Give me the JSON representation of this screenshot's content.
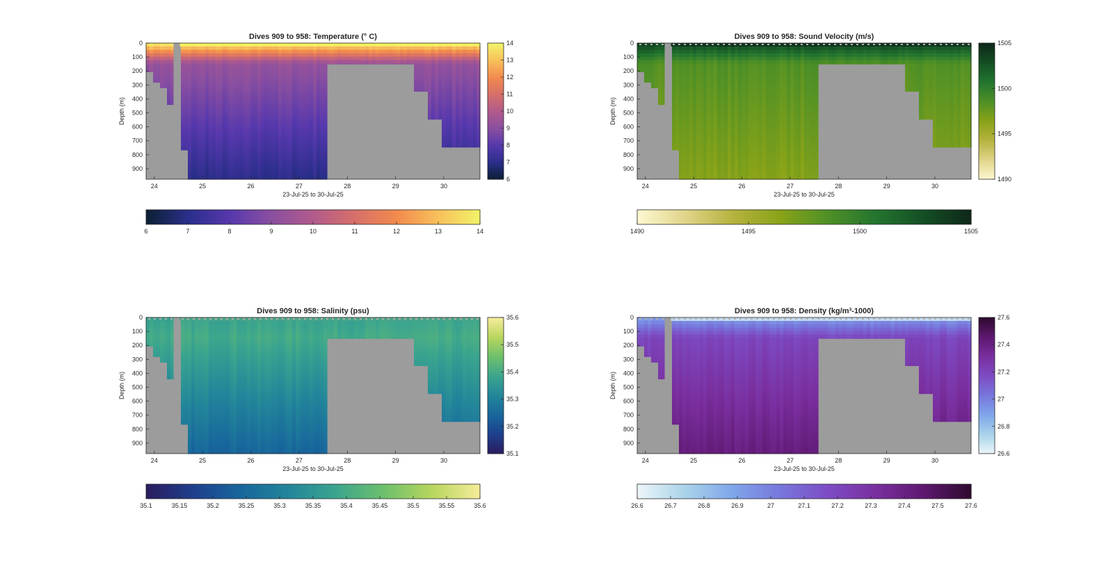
{
  "chart_data": [
    {
      "type": "heatmap",
      "title": "Dives 909 to 958: Temperature (° C)",
      "ylabel": "Depth (m)",
      "xlabel": "23-Jul-25 to 30-Jul-25",
      "xticks": [
        "24",
        "25",
        "26",
        "27",
        "28",
        "29",
        "30"
      ],
      "yticks": [
        "0",
        "100",
        "200",
        "300",
        "400",
        "500",
        "600",
        "700",
        "800",
        "900"
      ],
      "xlim": [
        23.83,
        30.75
      ],
      "ylim": [
        0,
        975
      ],
      "clim": [
        6,
        14
      ],
      "colorbar_ticks": [
        "6",
        "7",
        "8",
        "9",
        "10",
        "11",
        "12",
        "13",
        "14"
      ],
      "colorbar_ticks_right": [
        "6",
        "7",
        "8",
        "9",
        "10",
        "11",
        "12",
        "13",
        "14"
      ],
      "colormap": [
        "#0b1f32",
        "#2a2e8a",
        "#5638ad",
        "#8a4fa0",
        "#b15a8c",
        "#d66f6a",
        "#f28a4d",
        "#f8c05a",
        "#f2f36a"
      ],
      "profile": {
        "surface": 14,
        "mid": 9.3,
        "bottom": 7.0
      },
      "surface_mask": false,
      "surface_color": "#f2f060"
    },
    {
      "type": "heatmap",
      "title": "Dives 909 to 958: Sound Velocity (m/s)",
      "ylabel": "Depth (m)",
      "xlabel": "23-Jul-25 to 30-Jul-25",
      "xticks": [
        "24",
        "25",
        "26",
        "27",
        "28",
        "29",
        "30"
      ],
      "yticks": [
        "0",
        "100",
        "200",
        "300",
        "400",
        "500",
        "600",
        "700",
        "800",
        "900"
      ],
      "xlim": [
        23.83,
        30.75
      ],
      "ylim": [
        0,
        975
      ],
      "clim": [
        1490,
        1505
      ],
      "colorbar_ticks": [
        "1490",
        "1495",
        "1500",
        "1505"
      ],
      "colorbar_ticks_right": [
        "1490",
        "1495",
        "1500",
        "1505"
      ],
      "colormap": [
        "#fdf8d2",
        "#e1d58a",
        "#b6b33f",
        "#89a318",
        "#4f9026",
        "#23752f",
        "#144f24",
        "#0e2719"
      ],
      "profile": {
        "surface": 1503.5,
        "mid": 1498.5,
        "bottom": 1496.5
      },
      "surface_mask": true,
      "surface_color": "#103021"
    },
    {
      "type": "heatmap",
      "title": "Dives 909 to 958: Salinity (psu)",
      "ylabel": "Depth (m)",
      "xlabel": "23-Jul-25 to 30-Jul-25",
      "xticks": [
        "24",
        "25",
        "26",
        "27",
        "28",
        "29",
        "30"
      ],
      "yticks": [
        "0",
        "100",
        "200",
        "300",
        "400",
        "500",
        "600",
        "700",
        "800",
        "900"
      ],
      "xlim": [
        23.83,
        30.75
      ],
      "ylim": [
        0,
        975
      ],
      "clim": [
        35.1,
        35.6
      ],
      "colorbar_ticks": [
        "35.1",
        "35.15",
        "35.2",
        "35.25",
        "35.3",
        "35.35",
        "35.4",
        "35.45",
        "35.5",
        "35.55",
        "35.6"
      ],
      "colorbar_ticks_right": [
        "35.1",
        "35.2",
        "35.3",
        "35.4",
        "35.5",
        "35.6"
      ],
      "colormap": [
        "#2a1c5e",
        "#1e3f8c",
        "#17679c",
        "#23869a",
        "#3ba58e",
        "#6ec06c",
        "#b8d65e",
        "#f6ec9a"
      ],
      "profile": {
        "surface": 35.38,
        "mid": 35.4,
        "bottom": 35.24
      },
      "surface_mask": true,
      "surface_color": "#4ea58a"
    },
    {
      "type": "heatmap",
      "title": "Dives 909 to 958: Density (kg/m³-1000)",
      "ylabel": "Depth (m)",
      "xlabel": "23-Jul-25 to 30-Jul-25",
      "xticks": [
        "24",
        "25",
        "26",
        "27",
        "28",
        "29",
        "30"
      ],
      "yticks": [
        "0",
        "100",
        "200",
        "300",
        "400",
        "500",
        "600",
        "700",
        "800",
        "900"
      ],
      "xlim": [
        23.83,
        30.75
      ],
      "ylim": [
        0,
        975
      ],
      "clim": [
        26.6,
        27.6
      ],
      "colorbar_ticks": [
        "26.6",
        "26.7",
        "26.8",
        "26.9",
        "27",
        "27.1",
        "27.2",
        "27.3",
        "27.4",
        "27.5",
        "27.6"
      ],
      "colorbar_ticks_right": [
        "26.6",
        "26.8",
        "27",
        "27.2",
        "27.4",
        "27.6"
      ],
      "colormap": [
        "#edf6f8",
        "#a9d3ea",
        "#7fa6ea",
        "#7877dc",
        "#7d4cc4",
        "#7a2f9f",
        "#5e1870",
        "#2e0a2e"
      ],
      "profile": {
        "surface": 26.9,
        "mid": 27.2,
        "bottom": 27.42
      },
      "surface_mask": true,
      "surface_color": "#cfe6f2"
    }
  ]
}
